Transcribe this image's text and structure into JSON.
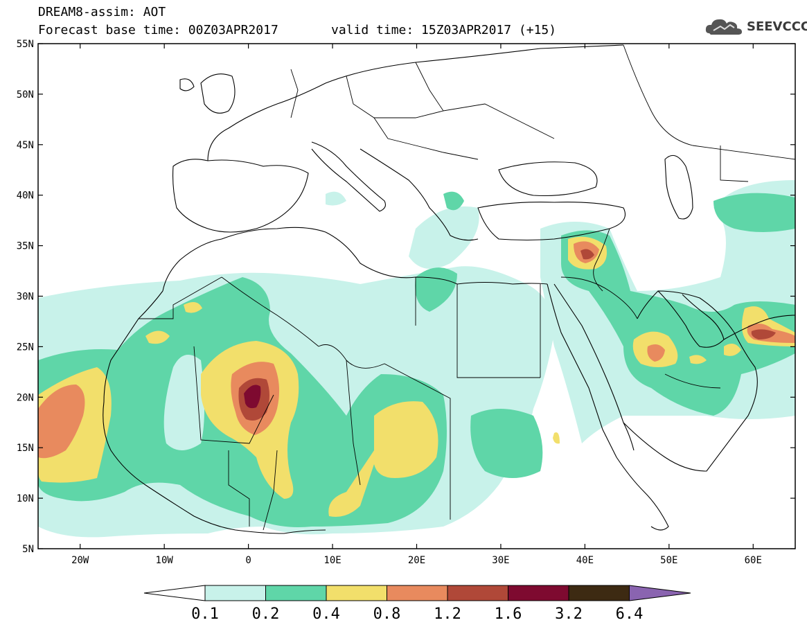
{
  "header": {
    "title": "DREAM8-assim: AOT",
    "base_time": "Forecast base time: 00Z03APR2017",
    "valid_time": "valid time: 15Z03APR2017 (+15)"
  },
  "logo": {
    "text": "SEEVCCC",
    "icon": "cloud-icon"
  },
  "map": {
    "lon_range": [
      -25,
      65
    ],
    "lat_range": [
      5,
      55
    ],
    "lat_ticks": [
      "5N",
      "10N",
      "15N",
      "20N",
      "25N",
      "30N",
      "35N",
      "40N",
      "45N",
      "50N",
      "55N"
    ],
    "lon_ticks": [
      "20W",
      "10W",
      "0",
      "10E",
      "20E",
      "30E",
      "40E",
      "50E",
      "60E"
    ]
  },
  "colorbar": {
    "labels": [
      "0.1",
      "0.2",
      "0.4",
      "0.8",
      "1.2",
      "1.6",
      "3.2",
      "6.4"
    ],
    "colors": [
      "#c8f2ea",
      "#5fd6a8",
      "#f2df6b",
      "#e88a5e",
      "#b04838",
      "#7e0a30",
      "#3d2a12",
      "#8a64b0"
    ]
  }
}
